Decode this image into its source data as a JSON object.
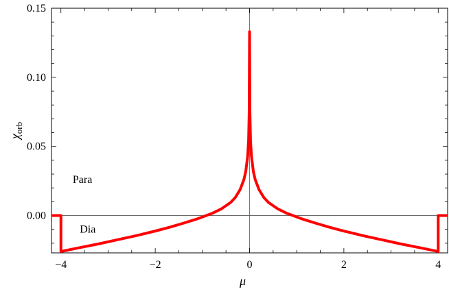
{
  "chart_data": {
    "type": "line",
    "xlabel": "μ",
    "ylabel": {
      "main": "χ",
      "sub": "orb"
    },
    "xlim": [
      -4.2,
      4.2
    ],
    "ylim": [
      -0.027,
      0.15
    ],
    "xticks": [
      -4,
      -2,
      0,
      2,
      4
    ],
    "xtick_labels": [
      "−4",
      "−2",
      "0",
      "2",
      "4"
    ],
    "yticks": [
      0.0,
      0.05,
      0.1,
      0.15
    ],
    "ytick_labels": [
      "0.00",
      "0.05",
      "0.10",
      "0.15"
    ],
    "grid": false,
    "series": [
      {
        "color": "#ff0000",
        "x": [
          -4.2,
          -4.02,
          -4.0,
          -4.0,
          -3.6,
          -3.2,
          -2.8,
          -2.4,
          -2.0,
          -1.7,
          -1.4,
          -1.1,
          -0.8,
          -0.6,
          -0.4,
          -0.3,
          -0.2,
          -0.12,
          -0.08,
          -0.04,
          -0.02,
          -0.008,
          0.0,
          0.008,
          0.02,
          0.04,
          0.08,
          0.12,
          0.2,
          0.3,
          0.4,
          0.6,
          0.8,
          1.1,
          1.4,
          1.7,
          2.0,
          2.4,
          2.8,
          3.2,
          3.6,
          4.0,
          4.0,
          4.02,
          4.2
        ],
        "y": [
          0.0,
          0.0,
          0.0,
          -0.026,
          -0.0232,
          -0.0205,
          -0.0175,
          -0.0145,
          -0.0112,
          -0.0085,
          -0.0055,
          -0.0023,
          0.0015,
          0.0048,
          0.0095,
          0.0132,
          0.0188,
          0.026,
          0.032,
          0.043,
          0.055,
          0.075,
          0.133,
          0.075,
          0.055,
          0.043,
          0.032,
          0.026,
          0.0188,
          0.0132,
          0.0095,
          0.0048,
          0.0015,
          -0.0023,
          -0.0055,
          -0.0085,
          -0.0112,
          -0.0145,
          -0.0175,
          -0.0205,
          -0.0232,
          -0.026,
          0.0,
          0.0,
          0.0
        ]
      }
    ],
    "annotations": [
      {
        "text": "Para",
        "x": -3.75,
        "y": 0.026
      },
      {
        "text": "Dia",
        "x": -3.6,
        "y": -0.01
      }
    ]
  }
}
